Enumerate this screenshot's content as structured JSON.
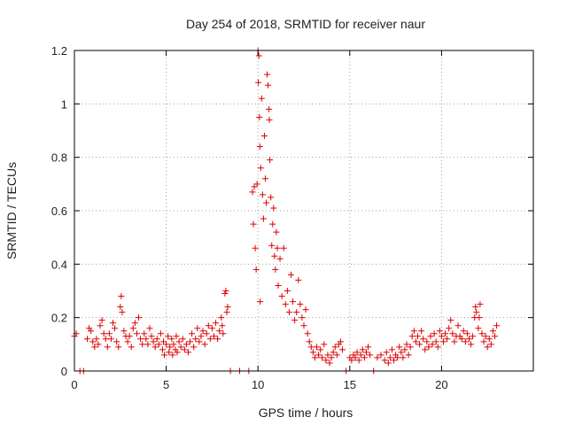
{
  "chart_data": {
    "type": "scatter",
    "title": "Day 254 of 2018, SRMTID for receiver naur",
    "xlabel": "GPS time / hours",
    "ylabel": "SRMTID / TECUs",
    "xlim": [
      0,
      25
    ],
    "ylim": [
      0,
      1.2
    ],
    "xticks": [
      0,
      5,
      10,
      15,
      20
    ],
    "xtick_labels": [
      "0",
      "5",
      "10",
      "15",
      "20"
    ],
    "yticks": [
      0,
      0.2,
      0.4,
      0.6,
      0.8,
      1.0,
      1.2
    ],
    "ytick_labels": [
      "0",
      "0.2",
      "0.4",
      "0.6",
      "0.8",
      "1",
      "1.2"
    ],
    "grid": true,
    "marker": "+",
    "series": [
      {
        "name": "SRMTID",
        "color": "#dd0000",
        "points": [
          [
            0.0,
            0.13
          ],
          [
            0.1,
            0.14
          ],
          [
            0.3,
            0.0
          ],
          [
            0.5,
            0.0
          ],
          [
            0.7,
            0.12
          ],
          [
            0.8,
            0.16
          ],
          [
            0.9,
            0.15
          ],
          [
            1.0,
            0.11
          ],
          [
            1.1,
            0.09
          ],
          [
            1.2,
            0.12
          ],
          [
            1.3,
            0.1
          ],
          [
            1.4,
            0.17
          ],
          [
            1.5,
            0.19
          ],
          [
            1.6,
            0.14
          ],
          [
            1.7,
            0.12
          ],
          [
            1.8,
            0.09
          ],
          [
            1.9,
            0.14
          ],
          [
            2.0,
            0.12
          ],
          [
            2.1,
            0.18
          ],
          [
            2.2,
            0.16
          ],
          [
            2.3,
            0.11
          ],
          [
            2.4,
            0.09
          ],
          [
            2.5,
            0.24
          ],
          [
            2.55,
            0.28
          ],
          [
            2.6,
            0.22
          ],
          [
            2.7,
            0.15
          ],
          [
            2.8,
            0.13
          ],
          [
            2.9,
            0.11
          ],
          [
            3.0,
            0.13
          ],
          [
            3.1,
            0.09
          ],
          [
            3.2,
            0.16
          ],
          [
            3.3,
            0.18
          ],
          [
            3.4,
            0.14
          ],
          [
            3.5,
            0.2
          ],
          [
            3.6,
            0.12
          ],
          [
            3.7,
            0.1
          ],
          [
            3.8,
            0.14
          ],
          [
            3.9,
            0.12
          ],
          [
            4.0,
            0.1
          ],
          [
            4.1,
            0.16
          ],
          [
            4.2,
            0.13
          ],
          [
            4.3,
            0.11
          ],
          [
            4.4,
            0.09
          ],
          [
            4.5,
            0.12
          ],
          [
            4.6,
            0.1
          ],
          [
            4.7,
            0.14
          ],
          [
            4.8,
            0.08
          ],
          [
            4.85,
            0.11
          ],
          [
            4.9,
            0.06
          ],
          [
            5.0,
            0.1
          ],
          [
            5.1,
            0.13
          ],
          [
            5.15,
            0.07
          ],
          [
            5.2,
            0.09
          ],
          [
            5.3,
            0.12
          ],
          [
            5.35,
            0.06
          ],
          [
            5.4,
            0.1
          ],
          [
            5.5,
            0.08
          ],
          [
            5.55,
            0.13
          ],
          [
            5.6,
            0.07
          ],
          [
            5.7,
            0.11
          ],
          [
            5.8,
            0.09
          ],
          [
            5.9,
            0.12
          ],
          [
            6.0,
            0.08
          ],
          [
            6.1,
            0.1
          ],
          [
            6.2,
            0.07
          ],
          [
            6.3,
            0.11
          ],
          [
            6.4,
            0.14
          ],
          [
            6.5,
            0.09
          ],
          [
            6.6,
            0.12
          ],
          [
            6.7,
            0.16
          ],
          [
            6.8,
            0.11
          ],
          [
            6.9,
            0.13
          ],
          [
            7.0,
            0.15
          ],
          [
            7.1,
            0.1
          ],
          [
            7.2,
            0.14
          ],
          [
            7.3,
            0.17
          ],
          [
            7.4,
            0.12
          ],
          [
            7.5,
            0.16
          ],
          [
            7.6,
            0.13
          ],
          [
            7.7,
            0.18
          ],
          [
            7.8,
            0.12
          ],
          [
            7.9,
            0.15
          ],
          [
            8.0,
            0.2
          ],
          [
            8.05,
            0.17
          ],
          [
            8.1,
            0.14
          ],
          [
            8.2,
            0.29
          ],
          [
            8.25,
            0.3
          ],
          [
            8.3,
            0.22
          ],
          [
            8.35,
            0.24
          ],
          [
            8.5,
            0.0
          ],
          [
            9.0,
            0.0
          ],
          [
            9.5,
            0.0
          ],
          [
            9.7,
            0.67
          ],
          [
            9.75,
            0.55
          ],
          [
            9.8,
            0.69
          ],
          [
            9.85,
            0.46
          ],
          [
            9.9,
            0.38
          ],
          [
            9.95,
            0.7
          ],
          [
            10.0,
            1.2
          ],
          [
            10.02,
            1.08
          ],
          [
            10.05,
            1.18
          ],
          [
            10.08,
            0.95
          ],
          [
            10.1,
            0.84
          ],
          [
            10.12,
            0.26
          ],
          [
            10.15,
            0.76
          ],
          [
            10.2,
            1.02
          ],
          [
            10.25,
            0.66
          ],
          [
            10.3,
            0.57
          ],
          [
            10.35,
            0.88
          ],
          [
            10.4,
            0.72
          ],
          [
            10.45,
            0.63
          ],
          [
            10.5,
            1.11
          ],
          [
            10.55,
            1.07
          ],
          [
            10.6,
            0.98
          ],
          [
            10.62,
            0.94
          ],
          [
            10.65,
            0.79
          ],
          [
            10.7,
            0.65
          ],
          [
            10.75,
            0.47
          ],
          [
            10.8,
            0.55
          ],
          [
            10.85,
            0.61
          ],
          [
            10.9,
            0.43
          ],
          [
            10.95,
            0.38
          ],
          [
            11.0,
            0.52
          ],
          [
            11.05,
            0.46
          ],
          [
            11.1,
            0.32
          ],
          [
            11.2,
            0.42
          ],
          [
            11.3,
            0.28
          ],
          [
            11.4,
            0.46
          ],
          [
            11.5,
            0.25
          ],
          [
            11.6,
            0.3
          ],
          [
            11.7,
            0.22
          ],
          [
            11.8,
            0.36
          ],
          [
            11.9,
            0.26
          ],
          [
            12.0,
            0.19
          ],
          [
            12.1,
            0.22
          ],
          [
            12.2,
            0.34
          ],
          [
            12.3,
            0.25
          ],
          [
            12.4,
            0.2
          ],
          [
            12.5,
            0.17
          ],
          [
            12.6,
            0.23
          ],
          [
            12.7,
            0.14
          ],
          [
            12.8,
            0.11
          ],
          [
            12.9,
            0.09
          ],
          [
            13.0,
            0.07
          ],
          [
            13.1,
            0.05
          ],
          [
            13.2,
            0.09
          ],
          [
            13.3,
            0.06
          ],
          [
            13.4,
            0.08
          ],
          [
            13.5,
            0.05
          ],
          [
            13.6,
            0.1
          ],
          [
            13.7,
            0.04
          ],
          [
            13.8,
            0.06
          ],
          [
            13.9,
            0.03
          ],
          [
            14.0,
            0.05
          ],
          [
            14.1,
            0.07
          ],
          [
            14.2,
            0.09
          ],
          [
            14.3,
            0.06
          ],
          [
            14.4,
            0.1
          ],
          [
            14.5,
            0.11
          ],
          [
            14.6,
            0.08
          ],
          [
            14.8,
            0.0
          ],
          [
            15.0,
            0.05
          ],
          [
            15.1,
            0.04
          ],
          [
            15.2,
            0.06
          ],
          [
            15.3,
            0.05
          ],
          [
            15.4,
            0.07
          ],
          [
            15.5,
            0.04
          ],
          [
            15.6,
            0.06
          ],
          [
            15.7,
            0.08
          ],
          [
            15.8,
            0.05
          ],
          [
            15.9,
            0.07
          ],
          [
            16.0,
            0.09
          ],
          [
            16.1,
            0.06
          ],
          [
            16.3,
            0.0
          ],
          [
            16.5,
            0.05
          ],
          [
            16.7,
            0.06
          ],
          [
            16.9,
            0.04
          ],
          [
            17.0,
            0.07
          ],
          [
            17.1,
            0.03
          ],
          [
            17.2,
            0.05
          ],
          [
            17.3,
            0.08
          ],
          [
            17.4,
            0.04
          ],
          [
            17.5,
            0.06
          ],
          [
            17.6,
            0.05
          ],
          [
            17.7,
            0.09
          ],
          [
            17.8,
            0.07
          ],
          [
            17.9,
            0.05
          ],
          [
            18.0,
            0.08
          ],
          [
            18.1,
            0.1
          ],
          [
            18.2,
            0.06
          ],
          [
            18.3,
            0.09
          ],
          [
            18.4,
            0.13
          ],
          [
            18.5,
            0.15
          ],
          [
            18.6,
            0.11
          ],
          [
            18.7,
            0.13
          ],
          [
            18.8,
            0.1
          ],
          [
            18.9,
            0.15
          ],
          [
            19.0,
            0.12
          ],
          [
            19.1,
            0.08
          ],
          [
            19.2,
            0.11
          ],
          [
            19.3,
            0.09
          ],
          [
            19.4,
            0.13
          ],
          [
            19.5,
            0.1
          ],
          [
            19.6,
            0.14
          ],
          [
            19.7,
            0.11
          ],
          [
            19.8,
            0.09
          ],
          [
            19.9,
            0.15
          ],
          [
            20.0,
            0.13
          ],
          [
            20.1,
            0.11
          ],
          [
            20.2,
            0.14
          ],
          [
            20.3,
            0.12
          ],
          [
            20.4,
            0.16
          ],
          [
            20.5,
            0.19
          ],
          [
            20.6,
            0.14
          ],
          [
            20.7,
            0.11
          ],
          [
            20.8,
            0.13
          ],
          [
            20.9,
            0.17
          ],
          [
            21.0,
            0.13
          ],
          [
            21.1,
            0.12
          ],
          [
            21.2,
            0.15
          ],
          [
            21.3,
            0.11
          ],
          [
            21.4,
            0.14
          ],
          [
            21.5,
            0.12
          ],
          [
            21.6,
            0.1
          ],
          [
            21.7,
            0.13
          ],
          [
            21.8,
            0.2
          ],
          [
            21.85,
            0.24
          ],
          [
            21.9,
            0.22
          ],
          [
            22.0,
            0.16
          ],
          [
            22.05,
            0.2
          ],
          [
            22.1,
            0.25
          ],
          [
            22.2,
            0.14
          ],
          [
            22.3,
            0.11
          ],
          [
            22.4,
            0.13
          ],
          [
            22.5,
            0.09
          ],
          [
            22.6,
            0.12
          ],
          [
            22.7,
            0.1
          ],
          [
            22.8,
            0.15
          ],
          [
            22.9,
            0.13
          ],
          [
            23.0,
            0.17
          ]
        ]
      }
    ]
  }
}
